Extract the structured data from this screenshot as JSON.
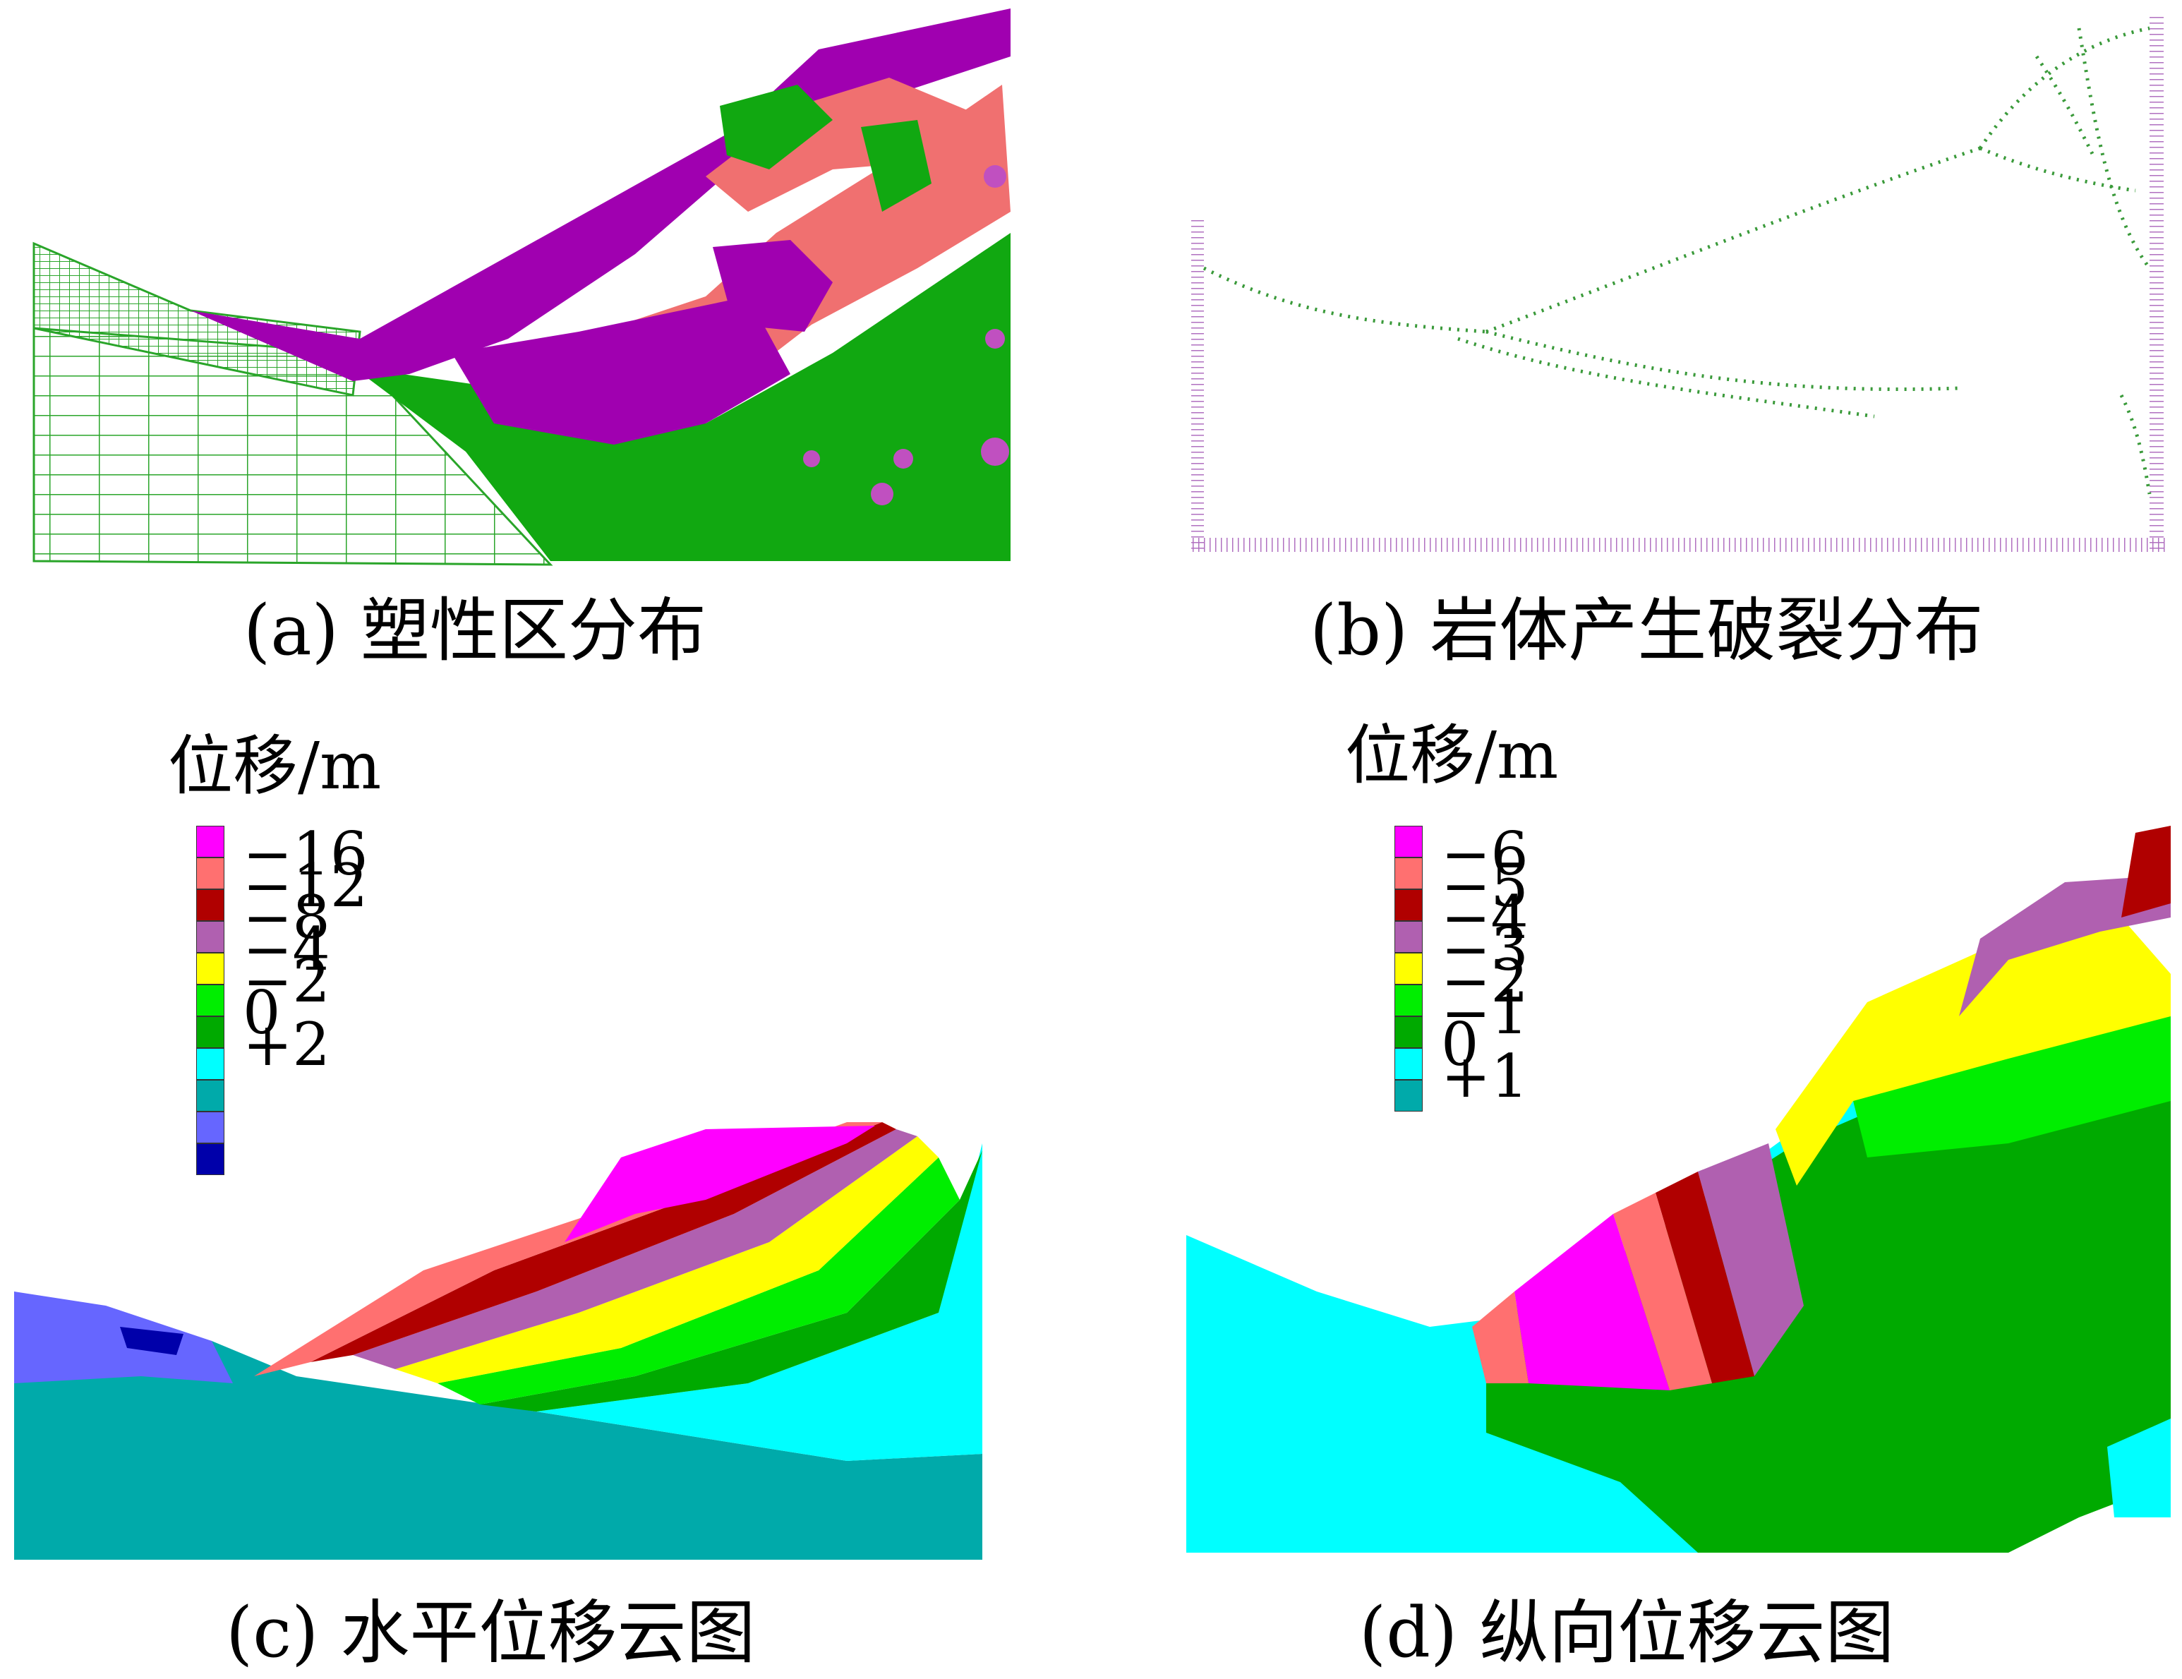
{
  "panels": {
    "a": {
      "caption": "(a)  塑性区分布",
      "colors": {
        "purple": "#a000b0",
        "salmon": "#f07070",
        "green": "#11a811",
        "mesh": "#2aa52a"
      }
    },
    "b": {
      "caption": "(b)  岩体产生破裂分布",
      "colors": {
        "frame": "#b070c0",
        "crack": "#3a9a3a"
      }
    },
    "c": {
      "caption": "(c)  水平位移云图",
      "legend": {
        "title": "位移/m",
        "items": [
          {
            "label": "−16",
            "color": "#ff00ff"
          },
          {
            "label": "−12",
            "color": "#ff7070"
          },
          {
            "label": "−8",
            "color": "#b00000"
          },
          {
            "label": "−4",
            "color": "#b060b0"
          },
          {
            "label": "−2",
            "color": "#ffff00"
          },
          {
            "label": "0",
            "color": "#00ee00"
          },
          {
            "label": "+2",
            "color": "#00aa00"
          },
          {
            "label": "",
            "color": "#00ffff"
          },
          {
            "label": "",
            "color": "#00aaaa"
          },
          {
            "label": "",
            "color": "#6666ff"
          },
          {
            "label": "",
            "color": "#0000aa"
          }
        ]
      }
    },
    "d": {
      "caption": "(d)  纵向位移云图",
      "legend": {
        "title": "位移/m",
        "items": [
          {
            "label": "−6",
            "color": "#ff00ff"
          },
          {
            "label": "−5",
            "color": "#ff7070"
          },
          {
            "label": "−4",
            "color": "#b00000"
          },
          {
            "label": "−3",
            "color": "#b060b0"
          },
          {
            "label": "−2",
            "color": "#ffff00"
          },
          {
            "label": "−1",
            "color": "#00ee00"
          },
          {
            "label": "0",
            "color": "#00aa00"
          },
          {
            "label": "+1",
            "color": "#00ffff"
          },
          {
            "label": "",
            "color": "#00aaaa"
          }
        ]
      }
    }
  }
}
